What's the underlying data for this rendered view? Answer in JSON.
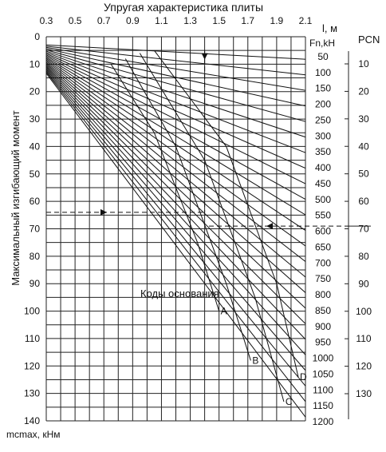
{
  "chart_data": {
    "type": "line",
    "title": "Упругая характеристика плиты",
    "ylabel": "Максимальный изгибающий момент",
    "x_unit_label": "l, м",
    "y_unit_label": "mcmax, кНм",
    "load_label": "Fn,kH",
    "pcn_label": "PCN",
    "codes_label": "Коды основания",
    "xlim": [
      0.3,
      2.1
    ],
    "ylim": [
      0,
      140
    ],
    "x_ticks": [
      "0.3",
      "0.5",
      "0.7",
      "0.9",
      "1.1",
      "1.3",
      "1.5",
      "1.7",
      "1.9",
      "2.1"
    ],
    "y_ticks": [
      "0",
      "10",
      "20",
      "30",
      "40",
      "50",
      "60",
      "70",
      "80",
      "90",
      "100",
      "110",
      "120",
      "130",
      "140"
    ],
    "load_ticks": [
      "50",
      "100",
      "150",
      "200",
      "250",
      "300",
      "350",
      "400",
      "450",
      "500",
      "550",
      "600",
      "650",
      "700",
      "750",
      "800",
      "850",
      "900",
      "950",
      "1000",
      "1050",
      "1100",
      "1150",
      "1200"
    ],
    "pcn_ticks": [
      "10",
      "20",
      "30",
      "40",
      "50",
      "60",
      "70",
      "80",
      "90",
      "100",
      "110",
      "120",
      "130"
    ],
    "subgrade_codes": [
      "A",
      "B",
      "C",
      "D"
    ],
    "grid": true,
    "fan_lines": "one line per load value Fn (50-1200 kN): moment increases linearly with elastic stiffness l",
    "example": {
      "l": 1.4,
      "moment": 64,
      "pcn": 70
    }
  }
}
